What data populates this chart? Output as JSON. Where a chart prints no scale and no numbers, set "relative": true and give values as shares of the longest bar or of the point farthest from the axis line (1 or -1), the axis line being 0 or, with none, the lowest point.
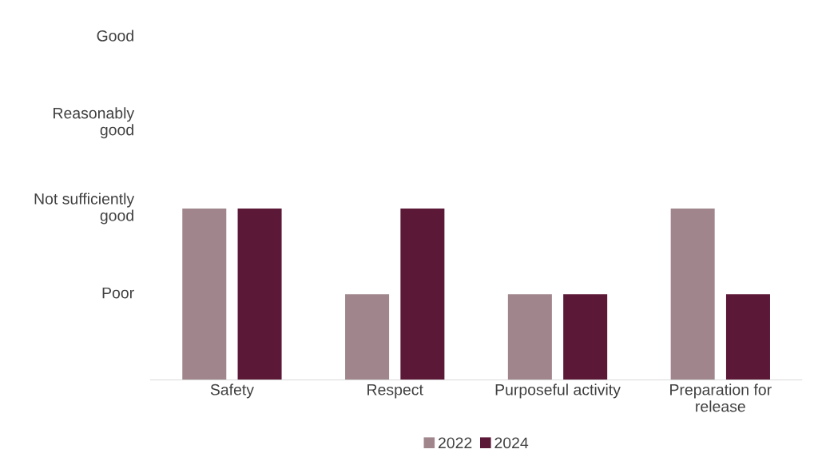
{
  "chart_data": {
    "type": "bar",
    "categories": [
      "Safety",
      "Respect",
      "Purposeful activity",
      "Preparation for\nrelease"
    ],
    "series": [
      {
        "name": "2022",
        "color": "#a0868c",
        "values": [
          1,
          0.5,
          0.5,
          1
        ]
      },
      {
        "name": "2024",
        "color": "#5c1837",
        "values": [
          1,
          1,
          0.5,
          0.5
        ]
      }
    ],
    "relative": true,
    "annotations": [
      "Poor",
      "Not sufficiently\ngood",
      "Reasonably\ngood",
      "Good"
    ],
    "legend": "bottom",
    "grid": false
  }
}
